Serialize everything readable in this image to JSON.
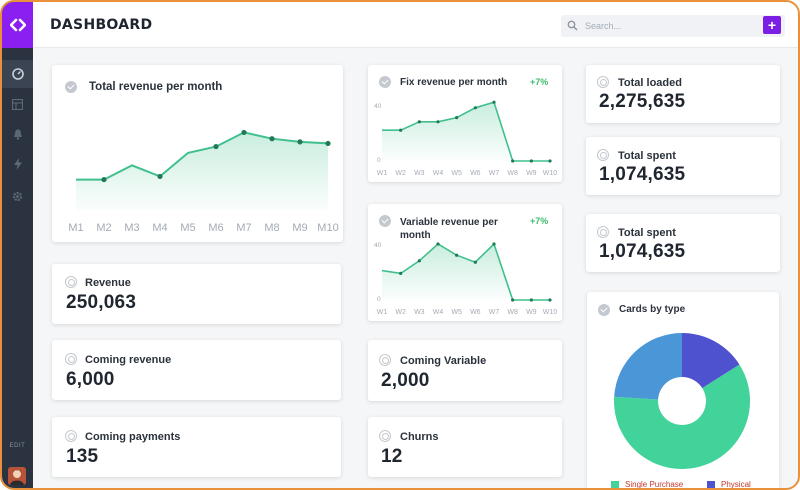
{
  "header": {
    "title": "DASHBOARD",
    "search_placeholder": "Search...",
    "add_label": "+"
  },
  "sidebar": {
    "edit_label": "EDIT",
    "items": [
      {
        "icon": "dashboard-icon"
      },
      {
        "icon": "grid-icon"
      },
      {
        "icon": "bell-icon"
      },
      {
        "icon": "bolt-icon"
      },
      {
        "icon": "gear-icon"
      }
    ]
  },
  "colors": {
    "brand": "#8b1ef0",
    "accent_green": "#3fc08c",
    "positive": "#3dbb6a",
    "pie_blue": "#4a96d6",
    "pie_indigo": "#4f52cf",
    "pie_green": "#42d39b"
  },
  "total_revenue": {
    "title": "Total revenue per month",
    "chart_data": {
      "type": "area",
      "categories": [
        "M1",
        "M2",
        "M3",
        "M4",
        "M5",
        "M6",
        "M7",
        "M8",
        "M9",
        "M10"
      ],
      "values": [
        20,
        20,
        29,
        22,
        37,
        41,
        50,
        46,
        44,
        43
      ],
      "ylim": [
        0,
        70
      ]
    }
  },
  "fix_revenue": {
    "title": "Fix revenue per month",
    "change": "+7%",
    "chart_data": {
      "type": "area",
      "categories": [
        "W1",
        "W2",
        "W3",
        "W4",
        "W5",
        "W6",
        "W7",
        "W8",
        "W9",
        "W10"
      ],
      "values": [
        22,
        22,
        28,
        28,
        31,
        38,
        42,
        0,
        0,
        0
      ],
      "ylim": [
        0,
        40
      ],
      "yticks": [
        "40",
        "0"
      ]
    }
  },
  "variable_revenue": {
    "title": "Variable revenue per month",
    "change": "+7%",
    "chart_data": {
      "type": "area",
      "categories": [
        "W1",
        "W2",
        "W3",
        "W4",
        "W5",
        "W6",
        "W7",
        "W8",
        "W9",
        "W10"
      ],
      "values": [
        21,
        19,
        28,
        40,
        32,
        27,
        40,
        0,
        0,
        0
      ],
      "ylim": [
        0,
        40
      ],
      "yticks": [
        "40",
        "0"
      ]
    }
  },
  "stats": {
    "revenue": {
      "title": "Revenue",
      "value": "250,063"
    },
    "coming_revenue": {
      "title": "Coming revenue",
      "value": "6,000"
    },
    "coming_payments": {
      "title": "Coming payments",
      "value": "135"
    },
    "coming_variable": {
      "title": "Coming Variable",
      "value": "2,000"
    },
    "churns": {
      "title": "Churns",
      "value": "12"
    },
    "total_loaded": {
      "title": "Total loaded",
      "value": "2,275,635"
    },
    "total_spent_1": {
      "title": "Total spent",
      "value": "1,074,635"
    },
    "total_spent_2": {
      "title": "Total spent",
      "value": "1,074,635"
    }
  },
  "cards_by_type": {
    "title": "Cards by type",
    "chart_data": {
      "type": "pie",
      "series": [
        {
          "name": "Single Purchase",
          "value": 60,
          "color": "#42d39b"
        },
        {
          "name": "",
          "value": 24,
          "color": "#4a96d6"
        },
        {
          "name": "Physical",
          "value": 16,
          "color": "#4f52cf"
        }
      ]
    },
    "legend": [
      "Single Purchase",
      "Physical"
    ]
  }
}
